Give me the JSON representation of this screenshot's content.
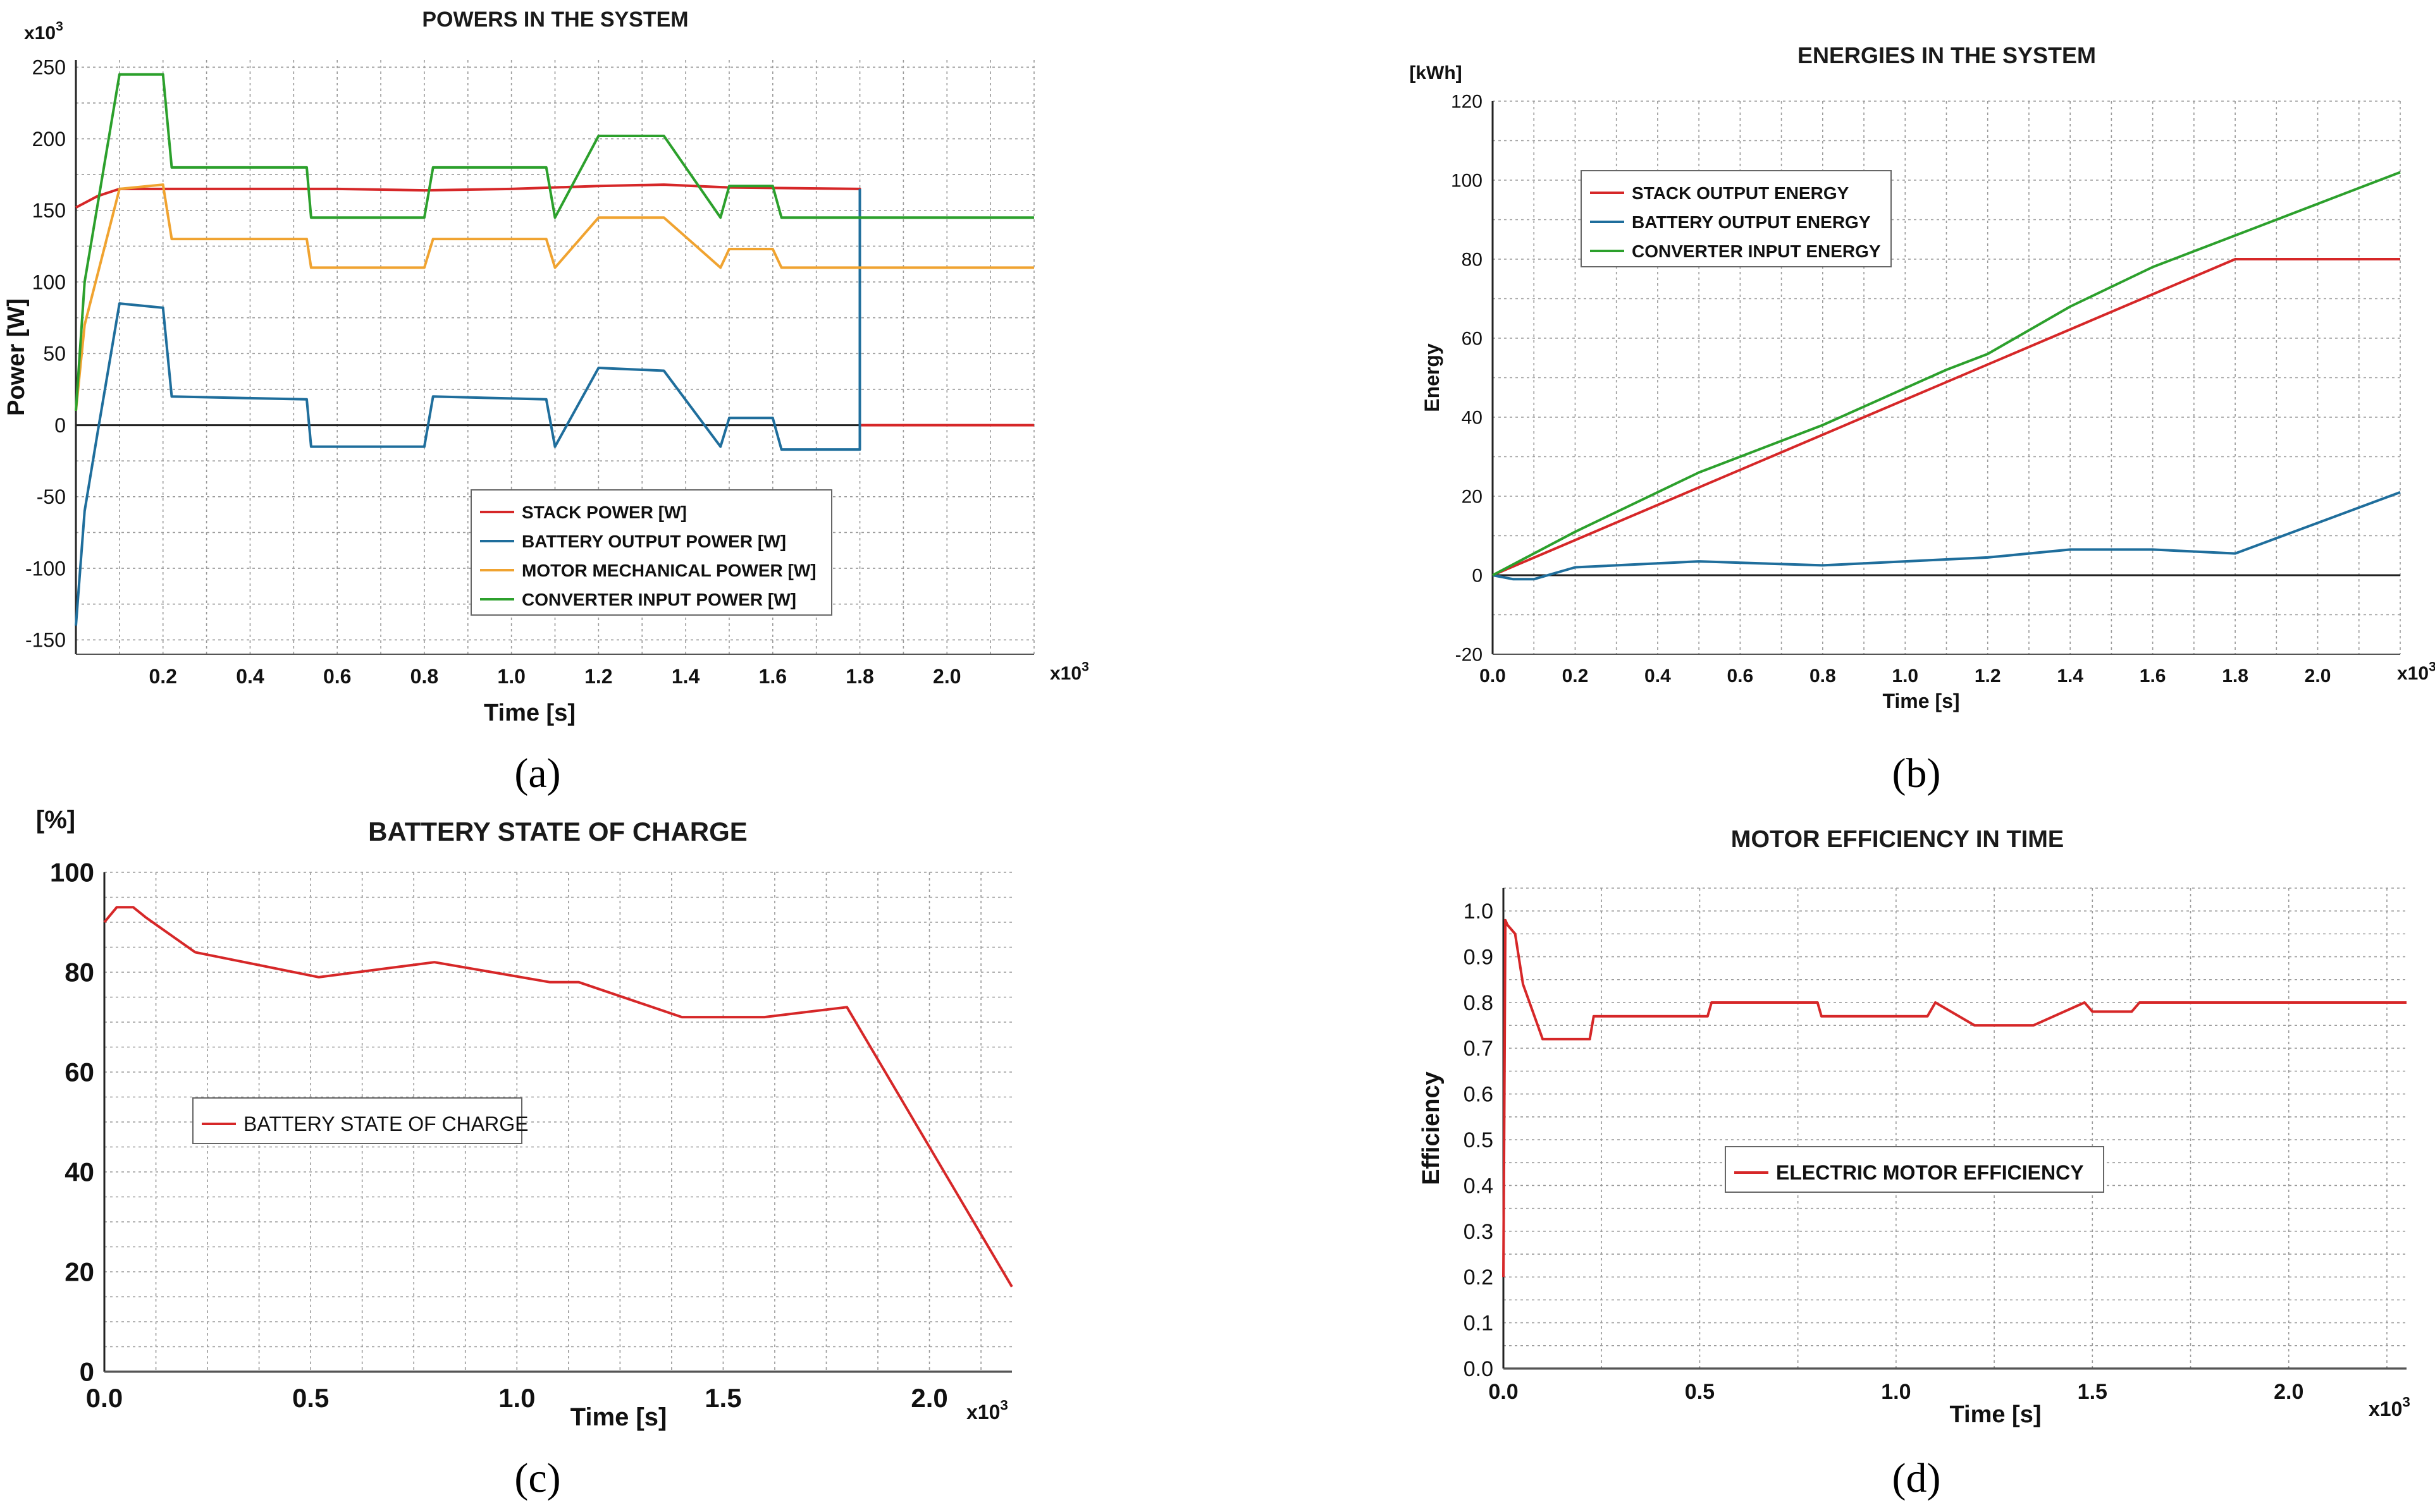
{
  "chart_data": [
    {
      "id": "a",
      "type": "line",
      "title": "POWERS IN THE SYSTEM",
      "panel_label": "(a)",
      "xlabel": "Time [s]",
      "ylabel": "Power [W]",
      "x_multiplier": "x10 3",
      "y_multiplier": "x10 3",
      "xlim": [
        0,
        2.2
      ],
      "ylim": [
        -160,
        255
      ],
      "x_ticks": [
        0.2,
        0.4,
        0.6,
        0.8,
        1.0,
        1.2,
        1.4,
        1.6,
        1.8,
        2.0
      ],
      "x_tick_labels": [
        "0.2",
        "0.4",
        "0.6",
        "0.8",
        "1.0",
        "1.2",
        "1.4",
        "1.6",
        "1.8",
        "2.0"
      ],
      "y_ticks": [
        250,
        200,
        150,
        100,
        50,
        0,
        -50,
        -100,
        -150
      ],
      "y_tick_labels": [
        "250",
        "200",
        "150",
        "100",
        "50",
        "0",
        "-50",
        "-100",
        "-150"
      ],
      "legend": [
        "STACK POWER [W]",
        "BATTERY OUTPUT POWER [W]",
        "MOTOR MECHANICAL POWER [W]",
        "CONVERTER INPUT POWER [W]"
      ],
      "series": [
        {
          "name": "STACK POWER [W]",
          "color": "#d62728",
          "x": [
            0,
            0.05,
            0.1,
            0.2,
            0.4,
            0.6,
            0.8,
            1.0,
            1.2,
            1.35,
            1.5,
            1.8,
            1.8,
            2.2
          ],
          "y": [
            152,
            160,
            165,
            165,
            165,
            165,
            164,
            165,
            167,
            168,
            166,
            165,
            0,
            0
          ]
        },
        {
          "name": "BATTERY OUTPUT POWER [W]",
          "color": "#1f6e9c",
          "x": [
            0,
            0.02,
            0.05,
            0.1,
            0.2,
            0.22,
            0.53,
            0.54,
            0.8,
            0.82,
            1.08,
            1.1,
            1.2,
            1.35,
            1.48,
            1.5,
            1.6,
            1.62,
            1.8,
            1.8
          ],
          "y": [
            -140,
            -60,
            -5,
            85,
            82,
            20,
            18,
            -15,
            -15,
            20,
            18,
            -15,
            40,
            38,
            -15,
            5,
            5,
            -17,
            -17,
            165
          ]
        },
        {
          "name": "MOTOR MECHANICAL POWER [W]",
          "color": "#f0a330",
          "x": [
            0,
            0.02,
            0.1,
            0.2,
            0.22,
            0.53,
            0.54,
            0.8,
            0.82,
            1.08,
            1.1,
            1.2,
            1.35,
            1.48,
            1.5,
            1.6,
            1.62,
            2.2
          ],
          "y": [
            10,
            70,
            165,
            168,
            130,
            130,
            110,
            110,
            130,
            130,
            110,
            145,
            145,
            110,
            123,
            123,
            110,
            110
          ]
        },
        {
          "name": "CONVERTER INPUT POWER [W]",
          "color": "#2ca02c",
          "x": [
            0,
            0.02,
            0.1,
            0.2,
            0.22,
            0.53,
            0.54,
            0.8,
            0.82,
            1.08,
            1.1,
            1.2,
            1.35,
            1.48,
            1.5,
            1.6,
            1.62,
            2.2
          ],
          "y": [
            10,
            100,
            245,
            245,
            180,
            180,
            145,
            145,
            180,
            180,
            145,
            202,
            202,
            145,
            167,
            167,
            145,
            145
          ]
        }
      ]
    },
    {
      "id": "b",
      "type": "line",
      "title": "ENERGIES IN THE SYSTEM",
      "panel_label": "(b)",
      "xlabel": "Time [s]",
      "ylabel": "Energy",
      "y_unit": "[kWh]",
      "x_multiplier": "x10 3",
      "xlim": [
        0,
        2.2
      ],
      "ylim": [
        -20,
        120
      ],
      "x_ticks": [
        0,
        0.2,
        0.4,
        0.6,
        0.8,
        1.0,
        1.2,
        1.4,
        1.6,
        1.8,
        2.0
      ],
      "x_tick_labels": [
        "0.0",
        "0.2",
        "0.4",
        "0.6",
        "0.8",
        "1.0",
        "1.2",
        "1.4",
        "1.6",
        "1.8",
        "2.0"
      ],
      "y_ticks": [
        120,
        100,
        80,
        60,
        40,
        20,
        0,
        -20
      ],
      "y_tick_labels": [
        "120",
        "100",
        "80",
        "60",
        "40",
        "20",
        "0",
        "-20"
      ],
      "legend": [
        "STACK OUTPUT ENERGY",
        "BATTERY OUTPUT ENERGY",
        "CONVERTER INPUT ENERGY"
      ],
      "series": [
        {
          "name": "STACK OUTPUT ENERGY",
          "color": "#d62728",
          "x": [
            0,
            1.8,
            1.8,
            2.2
          ],
          "y": [
            0,
            80,
            80,
            80
          ]
        },
        {
          "name": "BATTERY OUTPUT ENERGY",
          "color": "#1f6e9c",
          "x": [
            0,
            0.05,
            0.1,
            0.2,
            0.5,
            0.8,
            1.1,
            1.2,
            1.4,
            1.6,
            1.8,
            2.2
          ],
          "y": [
            0,
            -1,
            -1,
            2,
            3.5,
            2.5,
            4,
            4.5,
            6.5,
            6.5,
            5.5,
            21
          ]
        },
        {
          "name": "CONVERTER INPUT ENERGY",
          "color": "#2ca02c",
          "x": [
            0,
            0.2,
            0.5,
            0.8,
            1.1,
            1.2,
            1.4,
            1.6,
            1.8,
            2.0,
            2.2
          ],
          "y": [
            0,
            11,
            26,
            38,
            52,
            56,
            68,
            78,
            86,
            94,
            102
          ]
        }
      ]
    },
    {
      "id": "c",
      "type": "line",
      "title": "BATTERY STATE OF CHARGE",
      "panel_label": "(c)",
      "xlabel": "Time [s]",
      "ylabel": "",
      "y_unit": "[%]",
      "x_multiplier": "x10³",
      "xlim": [
        0,
        2.2
      ],
      "ylim": [
        0,
        100
      ],
      "x_ticks": [
        0,
        0.5,
        1.0,
        1.5,
        2.0
      ],
      "x_tick_labels": [
        "0.0",
        "0.5",
        "1.0",
        "1.5",
        "2.0"
      ],
      "y_ticks": [
        0,
        20,
        40,
        60,
        80,
        100
      ],
      "y_tick_labels": [
        "0",
        "20",
        "40",
        "60",
        "80",
        "100"
      ],
      "legend": [
        "BATTERY STATE OF CHARGE"
      ],
      "series": [
        {
          "name": "BATTERY STATE OF CHARGE",
          "color": "#d62728",
          "x": [
            0,
            0.03,
            0.07,
            0.1,
            0.22,
            0.52,
            0.8,
            1.08,
            1.15,
            1.4,
            1.6,
            1.8,
            2.2
          ],
          "y": [
            90,
            93,
            93,
            91,
            84,
            79,
            82,
            78,
            78,
            71,
            71,
            73,
            17
          ]
        }
      ]
    },
    {
      "id": "d",
      "type": "line",
      "title": "MOTOR EFFICIENCY IN TIME",
      "panel_label": "(d)",
      "xlabel": "Time [s]",
      "ylabel": "Efficiency",
      "x_multiplier": "x10 3",
      "xlim": [
        0,
        2.3
      ],
      "ylim": [
        0,
        1.05
      ],
      "x_ticks": [
        0,
        0.5,
        1.0,
        1.5,
        2.0
      ],
      "x_tick_labels": [
        "0.0",
        "0.5",
        "1.0",
        "1.5",
        "2.0"
      ],
      "y_ticks": [
        1.0,
        0.9,
        0.8,
        0.7,
        0.6,
        0.5,
        0.4,
        0.3,
        0.2,
        0.1,
        0.0
      ],
      "y_tick_labels": [
        "1.0",
        "0.9",
        "0.8",
        "0.7",
        "0.6",
        "0.5",
        "0.4",
        "0.3",
        "0.2",
        "0.1",
        "0.0"
      ],
      "legend": [
        "ELECTRIC MOTOR EFFICIENCY"
      ],
      "series": [
        {
          "name": "ELECTRIC MOTOR EFFICIENCY",
          "color": "#d62728",
          "x": [
            0,
            0.005,
            0.01,
            0.03,
            0.05,
            0.1,
            0.22,
            0.23,
            0.52,
            0.53,
            0.8,
            0.81,
            1.08,
            1.1,
            1.2,
            1.35,
            1.48,
            1.5,
            1.6,
            1.62,
            2.3
          ],
          "y": [
            0.2,
            0.98,
            0.97,
            0.95,
            0.84,
            0.72,
            0.72,
            0.77,
            0.77,
            0.8,
            0.8,
            0.77,
            0.77,
            0.8,
            0.75,
            0.75,
            0.8,
            0.78,
            0.78,
            0.8,
            0.8
          ]
        }
      ]
    }
  ]
}
